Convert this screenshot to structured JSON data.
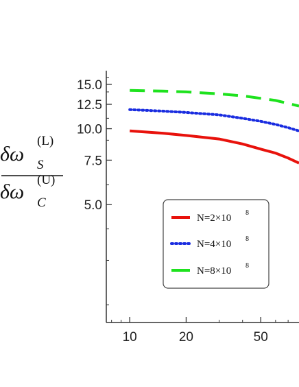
{
  "chart_data": {
    "type": "line",
    "title": "",
    "xlabel": "",
    "ylabel": {
      "delta": "δω",
      "num_sub": "S",
      "num_sup": "(L)",
      "den_sub": "C",
      "den_sup": "(U)"
    },
    "xscale": "log",
    "yscale": "log",
    "xlim": [
      7.5,
      80
    ],
    "ylim": [
      1.7,
      17
    ],
    "xticks": [
      10,
      20,
      50
    ],
    "xtick_labels": [
      "10",
      "20",
      "50"
    ],
    "yticks": [
      5.0,
      7.5,
      10.0,
      12.5,
      15.0
    ],
    "ytick_labels": [
      "5.0",
      "7.5",
      "10.0",
      "12.5",
      "15.0"
    ],
    "grid": false,
    "legend_position": "lower-left",
    "series": [
      {
        "name": "N=2×10",
        "name_sup": "8",
        "color": "#e8120c",
        "style": "solid",
        "x": [
          10,
          15,
          20,
          30,
          40,
          50,
          60,
          70,
          80
        ],
        "y": [
          9.8,
          9.6,
          9.4,
          9.1,
          8.7,
          8.3,
          8.0,
          7.65,
          7.3
        ]
      },
      {
        "name": "N=4×10",
        "name_sup": "8",
        "color": "#1a2de0",
        "style": "dotted",
        "x": [
          10,
          15,
          20,
          30,
          40,
          50,
          60,
          70,
          80
        ],
        "y": [
          11.9,
          11.75,
          11.6,
          11.35,
          11.0,
          10.7,
          10.4,
          10.1,
          9.8
        ]
      },
      {
        "name": "N=8×10",
        "name_sup": "8",
        "color": "#1ee21e",
        "style": "dashed",
        "x": [
          10,
          15,
          20,
          30,
          40,
          50,
          60,
          70,
          80
        ],
        "y": [
          14.2,
          14.1,
          14.0,
          13.75,
          13.5,
          13.2,
          12.95,
          12.6,
          12.3
        ]
      }
    ]
  }
}
